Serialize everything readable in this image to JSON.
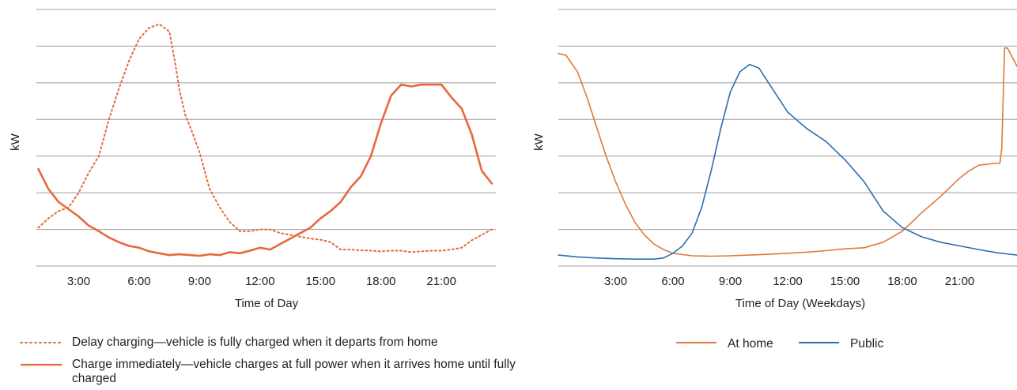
{
  "colors": {
    "orange": "#e8683d",
    "orange_thin": "#df7a3b",
    "blue": "#2b6fad",
    "grid": "#9c9c9c",
    "text": "#231f20"
  },
  "chart_data": [
    {
      "type": "line",
      "title": "",
      "xlabel": "Time of Day",
      "ylabel": "kW",
      "xlim": [
        0.9,
        23.7
      ],
      "ylim": [
        0,
        7
      ],
      "grid": true,
      "xticks": [
        3,
        6,
        9,
        12,
        15,
        18,
        21
      ],
      "xtick_labels": [
        "3:00",
        "6:00",
        "9:00",
        "12:00",
        "15:00",
        "18:00",
        "21:00"
      ],
      "legend_position": "bottom",
      "series": [
        {
          "name": "Delay charging—vehicle is fully charged when it departs from home",
          "style": "dotted",
          "x": [
            1,
            1.5,
            2,
            2.5,
            3,
            3.5,
            4,
            4.5,
            5,
            5.5,
            6,
            6.5,
            7,
            7.5,
            7.8,
            8,
            8.3,
            8.6,
            9,
            9.5,
            10,
            10.5,
            11,
            11.5,
            12,
            12.5,
            13,
            13.5,
            14,
            14.5,
            15,
            15.5,
            16,
            16.5,
            17,
            17.5,
            18,
            18.5,
            19,
            19.5,
            20,
            20.5,
            21,
            21.5,
            22,
            22.5,
            23,
            23.5
          ],
          "values": [
            1.05,
            1.3,
            1.5,
            1.6,
            2.0,
            2.55,
            3.0,
            4.0,
            4.85,
            5.6,
            6.2,
            6.5,
            6.6,
            6.4,
            5.5,
            4.8,
            4.1,
            3.7,
            3.1,
            2.1,
            1.6,
            1.2,
            0.95,
            0.95,
            1.0,
            1.0,
            0.9,
            0.85,
            0.8,
            0.75,
            0.72,
            0.65,
            0.45,
            0.45,
            0.43,
            0.42,
            0.4,
            0.42,
            0.42,
            0.38,
            0.4,
            0.42,
            0.42,
            0.45,
            0.5,
            0.7,
            0.85,
            1.0
          ]
        },
        {
          "name": "Charge immediately—vehicle charges at full power when it arrives home until fully charged",
          "style": "solid",
          "x": [
            1,
            1.5,
            2,
            2.5,
            3,
            3.5,
            4,
            4.5,
            5,
            5.5,
            6,
            6.5,
            7,
            7.5,
            8,
            8.5,
            9,
            9.5,
            10,
            10.5,
            11,
            11.5,
            12,
            12.5,
            13,
            13.5,
            14,
            14.5,
            15,
            15.5,
            16,
            16.5,
            17,
            17.5,
            18,
            18.5,
            19,
            19.5,
            20,
            20.5,
            21,
            21.5,
            22,
            22.5,
            23,
            23.5
          ],
          "values": [
            2.65,
            2.1,
            1.75,
            1.55,
            1.35,
            1.1,
            0.95,
            0.78,
            0.65,
            0.55,
            0.5,
            0.4,
            0.35,
            0.3,
            0.32,
            0.3,
            0.28,
            0.32,
            0.3,
            0.38,
            0.35,
            0.42,
            0.5,
            0.45,
            0.6,
            0.75,
            0.9,
            1.05,
            1.3,
            1.5,
            1.75,
            2.15,
            2.45,
            3.0,
            3.9,
            4.65,
            4.95,
            4.9,
            4.95,
            4.95,
            4.95,
            4.6,
            4.3,
            3.6,
            2.6,
            2.25
          ]
        }
      ]
    },
    {
      "type": "line",
      "title": "",
      "xlabel": "Time of Day (Weekdays)",
      "ylabel": "kW",
      "xlim": [
        0,
        24
      ],
      "ylim": [
        0,
        7
      ],
      "grid": true,
      "xticks": [
        3,
        6,
        9,
        12,
        15,
        18,
        21
      ],
      "xtick_labels": [
        "3:00",
        "6:00",
        "9:00",
        "12:00",
        "15:00",
        "18:00",
        "21:00"
      ],
      "legend_position": "bottom",
      "series": [
        {
          "name": "At home",
          "color": "orange",
          "x": [
            0,
            0.4,
            1,
            1.5,
            2,
            2.5,
            3,
            3.5,
            4,
            4.5,
            5,
            5.5,
            6,
            7,
            8,
            9,
            10,
            11,
            12,
            13,
            14,
            15,
            16,
            17,
            18,
            19,
            20,
            21,
            21.5,
            22,
            22.8,
            23.1,
            23.2,
            23.35,
            23.5,
            23.7,
            24
          ],
          "values": [
            5.8,
            5.75,
            5.3,
            4.6,
            3.8,
            3.0,
            2.3,
            1.7,
            1.2,
            0.85,
            0.6,
            0.45,
            0.35,
            0.28,
            0.27,
            0.28,
            0.3,
            0.32,
            0.35,
            0.38,
            0.42,
            0.47,
            0.5,
            0.65,
            0.95,
            1.45,
            1.9,
            2.4,
            2.6,
            2.75,
            2.8,
            2.8,
            3.2,
            5.95,
            5.95,
            5.75,
            5.45
          ]
        },
        {
          "name": "Public",
          "color": "blue",
          "x": [
            0,
            1,
            2,
            3,
            4,
            5,
            5.5,
            6,
            6.5,
            7,
            7.5,
            8,
            8.5,
            9,
            9.5,
            10,
            10.5,
            11,
            11.5,
            12,
            13,
            14,
            15,
            16,
            17,
            18,
            19,
            20,
            21,
            22,
            23,
            24
          ],
          "values": [
            0.3,
            0.25,
            0.22,
            0.2,
            0.19,
            0.19,
            0.22,
            0.35,
            0.55,
            0.9,
            1.6,
            2.6,
            3.75,
            4.75,
            5.3,
            5.5,
            5.4,
            5.0,
            4.6,
            4.2,
            3.75,
            3.4,
            2.9,
            2.3,
            1.5,
            1.05,
            0.8,
            0.65,
            0.55,
            0.45,
            0.36,
            0.3
          ]
        }
      ]
    }
  ]
}
